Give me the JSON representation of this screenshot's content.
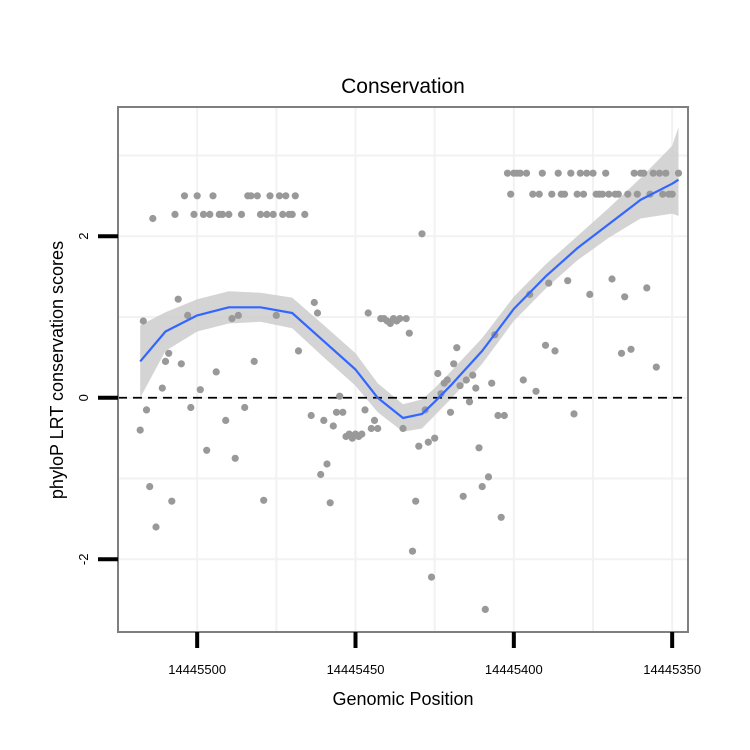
{
  "chart_data": {
    "type": "scatter",
    "title": "Conservation",
    "xlabel": "Genomic Position",
    "ylabel": "phyloP LRT conservation scores",
    "x_reversed": true,
    "xlim": [
      14445525,
      14445345
    ],
    "ylim": [
      -2.9,
      3.6
    ],
    "x_ticks": [
      14445500,
      14445450,
      14445400,
      14445350
    ],
    "x_tick_labels": [
      "14445500",
      "14445450",
      "14445400",
      "14445350"
    ],
    "y_ticks": [
      -2,
      0,
      2
    ],
    "y_tick_labels": [
      "-2",
      "0",
      "2"
    ],
    "reference_line": {
      "y": 0,
      "style": "dashed"
    },
    "grid": true,
    "colors": {
      "points": "#999999",
      "smooth_line": "#3366ff",
      "ribbon": "#cccccc",
      "grid": "#f2f2f2",
      "frame": "#7f7f7f"
    },
    "points": [
      [
        14445518,
        -0.4
      ],
      [
        14445517,
        0.95
      ],
      [
        14445516,
        -0.15
      ],
      [
        14445515,
        -1.1
      ],
      [
        14445514,
        2.22
      ],
      [
        14445513,
        -1.6
      ],
      [
        14445511,
        0.12
      ],
      [
        14445510,
        0.45
      ],
      [
        14445509,
        0.55
      ],
      [
        14445508,
        -1.28
      ],
      [
        14445507,
        2.27
      ],
      [
        14445506,
        1.22
      ],
      [
        14445505,
        0.42
      ],
      [
        14445504,
        2.5
      ],
      [
        14445503,
        1.02
      ],
      [
        14445502,
        -0.12
      ],
      [
        14445501,
        2.27
      ],
      [
        14445500,
        2.5
      ],
      [
        14445499,
        0.1
      ],
      [
        14445498,
        2.27
      ],
      [
        14445497,
        -0.65
      ],
      [
        14445496,
        2.27
      ],
      [
        14445495,
        2.5
      ],
      [
        14445494,
        0.32
      ],
      [
        14445493,
        2.27
      ],
      [
        14445492,
        2.27
      ],
      [
        14445491,
        -0.28
      ],
      [
        14445490,
        2.27
      ],
      [
        14445489,
        0.98
      ],
      [
        14445488,
        -0.75
      ],
      [
        14445487,
        1.02
      ],
      [
        14445486,
        2.27
      ],
      [
        14445485,
        -0.12
      ],
      [
        14445484,
        2.5
      ],
      [
        14445483,
        2.5
      ],
      [
        14445482,
        0.45
      ],
      [
        14445481,
        2.5
      ],
      [
        14445480,
        2.27
      ],
      [
        14445479,
        -1.27
      ],
      [
        14445478,
        2.27
      ],
      [
        14445477,
        2.5
      ],
      [
        14445476,
        2.27
      ],
      [
        14445475,
        1.02
      ],
      [
        14445474,
        2.5
      ],
      [
        14445473,
        2.27
      ],
      [
        14445472,
        2.5
      ],
      [
        14445471,
        2.27
      ],
      [
        14445470,
        2.27
      ],
      [
        14445469,
        2.5
      ],
      [
        14445468,
        0.58
      ],
      [
        14445466,
        2.27
      ],
      [
        14445464,
        -0.22
      ],
      [
        14445463,
        1.18
      ],
      [
        14445462,
        1.05
      ],
      [
        14445461,
        -0.95
      ],
      [
        14445460,
        -0.28
      ],
      [
        14445459,
        -0.82
      ],
      [
        14445458,
        -1.3
      ],
      [
        14445457,
        -0.35
      ],
      [
        14445456,
        -0.18
      ],
      [
        14445455,
        0.02
      ],
      [
        14445454,
        -0.18
      ],
      [
        14445453,
        -0.48
      ],
      [
        14445452,
        -0.45
      ],
      [
        14445451,
        -0.5
      ],
      [
        14445450,
        -0.45
      ],
      [
        14445449,
        -0.48
      ],
      [
        14445448,
        -0.45
      ],
      [
        14445447,
        -0.15
      ],
      [
        14445446,
        1.05
      ],
      [
        14445445,
        -0.38
      ],
      [
        14445444,
        -0.28
      ],
      [
        14445443,
        -0.38
      ],
      [
        14445442,
        0.98
      ],
      [
        14445441,
        0.98
      ],
      [
        14445440,
        0.95
      ],
      [
        14445439,
        0.92
      ],
      [
        14445438,
        0.98
      ],
      [
        14445437,
        0.95
      ],
      [
        14445436,
        0.98
      ],
      [
        14445435,
        -0.38
      ],
      [
        14445434,
        0.98
      ],
      [
        14445433,
        0.8
      ],
      [
        14445432,
        -1.9
      ],
      [
        14445431,
        -1.28
      ],
      [
        14445430,
        -0.6
      ],
      [
        14445429,
        2.03
      ],
      [
        14445428,
        -0.15
      ],
      [
        14445427,
        -0.55
      ],
      [
        14445426,
        -2.22
      ],
      [
        14445425,
        -0.5
      ],
      [
        14445424,
        0.3
      ],
      [
        14445423,
        0.05
      ],
      [
        14445422,
        0.18
      ],
      [
        14445421,
        0.22
      ],
      [
        14445420,
        -0.18
      ],
      [
        14445419,
        0.42
      ],
      [
        14445418,
        0.62
      ],
      [
        14445417,
        0.15
      ],
      [
        14445416,
        -1.22
      ],
      [
        14445415,
        0.22
      ],
      [
        14445414,
        -0.05
      ],
      [
        14445413,
        0.28
      ],
      [
        14445412,
        0.12
      ],
      [
        14445411,
        -0.62
      ],
      [
        14445410,
        -1.1
      ],
      [
        14445409,
        -2.62
      ],
      [
        14445408,
        -0.98
      ],
      [
        14445407,
        0.18
      ],
      [
        14445406,
        0.78
      ],
      [
        14445405,
        -0.22
      ],
      [
        14445404,
        -1.48
      ],
      [
        14445403,
        -0.22
      ],
      [
        14445402,
        2.78
      ],
      [
        14445401,
        2.52
      ],
      [
        14445400,
        2.78
      ],
      [
        14445399,
        2.78
      ],
      [
        14445398,
        2.78
      ],
      [
        14445397,
        0.22
      ],
      [
        14445396,
        2.78
      ],
      [
        14445395,
        1.28
      ],
      [
        14445394,
        2.52
      ],
      [
        14445393,
        0.08
      ],
      [
        14445392,
        2.52
      ],
      [
        14445391,
        2.78
      ],
      [
        14445390,
        0.65
      ],
      [
        14445389,
        1.42
      ],
      [
        14445388,
        2.52
      ],
      [
        14445387,
        0.58
      ],
      [
        14445386,
        2.78
      ],
      [
        14445385,
        2.52
      ],
      [
        14445384,
        2.52
      ],
      [
        14445383,
        1.45
      ],
      [
        14445382,
        2.78
      ],
      [
        14445381,
        -0.2
      ],
      [
        14445380,
        2.52
      ],
      [
        14445379,
        2.78
      ],
      [
        14445378,
        2.52
      ],
      [
        14445377,
        2.78
      ],
      [
        14445376,
        1.28
      ],
      [
        14445375,
        2.78
      ],
      [
        14445374,
        2.52
      ],
      [
        14445373,
        2.52
      ],
      [
        14445372,
        2.52
      ],
      [
        14445371,
        2.78
      ],
      [
        14445370,
        2.52
      ],
      [
        14445369,
        1.47
      ],
      [
        14445368,
        2.52
      ],
      [
        14445367,
        2.52
      ],
      [
        14445366,
        0.55
      ],
      [
        14445365,
        1.25
      ],
      [
        14445364,
        2.52
      ],
      [
        14445363,
        0.6
      ],
      [
        14445362,
        2.78
      ],
      [
        14445361,
        2.52
      ],
      [
        14445360,
        2.78
      ],
      [
        14445359,
        2.78
      ],
      [
        14445358,
        1.36
      ],
      [
        14445357,
        2.52
      ],
      [
        14445356,
        2.78
      ],
      [
        14445355,
        0.38
      ],
      [
        14445354,
        2.78
      ],
      [
        14445353,
        2.52
      ],
      [
        14445352,
        2.78
      ],
      [
        14445351,
        2.52
      ],
      [
        14445350,
        2.52
      ],
      [
        14445348,
        2.78
      ]
    ],
    "smooth": {
      "x": [
        14445518,
        14445510,
        14445500,
        14445490,
        14445480,
        14445470,
        14445460,
        14445450,
        14445443,
        14445435,
        14445429,
        14445425,
        14445420,
        14445410,
        14445400,
        14445390,
        14445380,
        14445370,
        14445360,
        14445350,
        14445348
      ],
      "y": [
        0.45,
        0.82,
        1.02,
        1.12,
        1.12,
        1.05,
        0.7,
        0.35,
        0.0,
        -0.25,
        -0.2,
        -0.05,
        0.15,
        0.58,
        1.1,
        1.5,
        1.85,
        2.15,
        2.45,
        2.65,
        2.7
      ],
      "lo": [
        0.0,
        0.58,
        0.82,
        0.92,
        0.94,
        0.86,
        0.5,
        0.15,
        -0.18,
        -0.42,
        -0.38,
        -0.22,
        -0.02,
        0.42,
        0.95,
        1.35,
        1.7,
        1.98,
        2.22,
        2.28,
        2.25
      ],
      "hi": [
        0.9,
        1.06,
        1.22,
        1.32,
        1.3,
        1.24,
        0.9,
        0.55,
        0.18,
        -0.08,
        -0.02,
        0.12,
        0.32,
        0.74,
        1.25,
        1.65,
        2.0,
        2.35,
        2.72,
        3.12,
        3.35
      ]
    }
  }
}
